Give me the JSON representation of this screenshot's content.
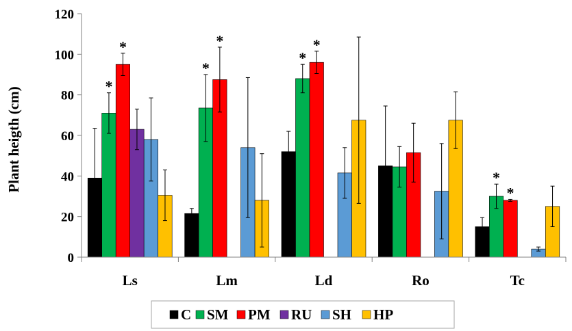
{
  "chart_data": {
    "type": "bar",
    "title": "",
    "xlabel": "",
    "ylabel": "Plant heigth (cm)",
    "ylim": [
      0,
      120
    ],
    "yticks": [
      0,
      20,
      40,
      60,
      80,
      100,
      120
    ],
    "grid": false,
    "legend_position": "bottom",
    "categories": [
      "Ls",
      "Lm",
      "Ld",
      "Ro",
      "Tc"
    ],
    "series": [
      {
        "name": "C",
        "color": "#000000",
        "values": [
          39,
          21.5,
          52,
          45,
          15
        ],
        "errors": [
          24.5,
          2.5,
          10,
          29.5,
          4.5
        ],
        "significant": [
          false,
          false,
          false,
          false,
          false
        ]
      },
      {
        "name": "SM",
        "color": "#00b050",
        "values": [
          71,
          73.5,
          88,
          44.5,
          30
        ],
        "errors": [
          10,
          16.5,
          7,
          10,
          6
        ],
        "significant": [
          true,
          true,
          true,
          false,
          true
        ]
      },
      {
        "name": "PM",
        "color": "#ff0000",
        "values": [
          95,
          87.5,
          96,
          51.5,
          28
        ],
        "errors": [
          5.5,
          16,
          5.5,
          14.5,
          0.5
        ],
        "significant": [
          true,
          true,
          true,
          false,
          true
        ]
      },
      {
        "name": "RU",
        "color": "#7030a0",
        "values": [
          63,
          null,
          null,
          null,
          null
        ],
        "errors": [
          10,
          null,
          null,
          null,
          null
        ],
        "significant": [
          false,
          false,
          false,
          false,
          false
        ]
      },
      {
        "name": "SH",
        "color": "#5b9bd5",
        "values": [
          58,
          54,
          41.5,
          32.5,
          4
        ],
        "errors": [
          20.5,
          34.5,
          12.5,
          23.5,
          1
        ],
        "significant": [
          false,
          false,
          false,
          false,
          false
        ]
      },
      {
        "name": "HP",
        "color": "#ffc000",
        "values": [
          30.5,
          28,
          67.5,
          67.5,
          25
        ],
        "errors": [
          12.5,
          23,
          41,
          14,
          10
        ],
        "significant": [
          false,
          false,
          false,
          false,
          false
        ]
      }
    ],
    "significance_marker": "*"
  }
}
